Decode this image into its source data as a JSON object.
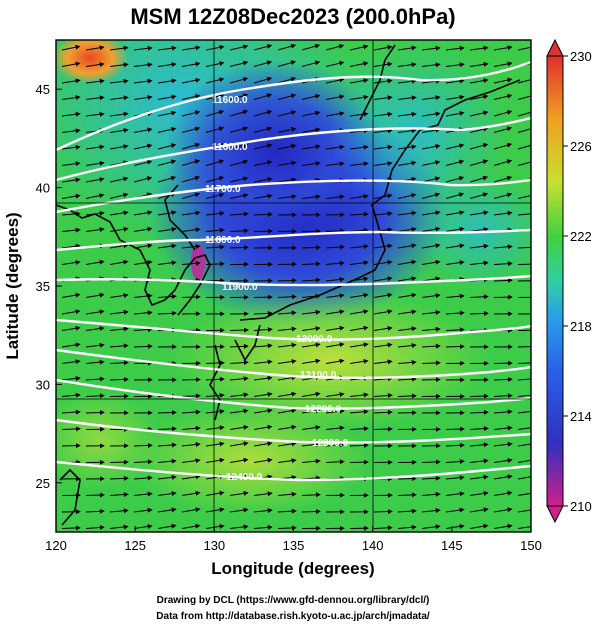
{
  "title": "MSM 12Z08Dec2023 (200.0hPa)",
  "map": {
    "x_label": "Longitude (degrees)",
    "y_label": "Latitude  (degrees)",
    "lon_range": [
      120,
      150
    ],
    "lat_range": [
      22.5,
      47.5
    ],
    "lon_ticks": [
      "120",
      "125",
      "130",
      "135",
      "140",
      "145",
      "150"
    ],
    "lat_ticks": [
      "25",
      "30",
      "35",
      "40",
      "45"
    ],
    "contour_labels": [
      "11600.0",
      "11600.0",
      "11700.0",
      "11800.0",
      "11900.0",
      "12000.0",
      "12100.0",
      "12200.0",
      "12300.0",
      "12400.0"
    ],
    "field_colors": {
      "low": "#2f2fcf",
      "mid": "#3fcf3f",
      "high": "#e8a020"
    }
  },
  "colorbar": {
    "ticks": [
      "230",
      "226",
      "222",
      "218",
      "214",
      "210"
    ],
    "range": [
      210,
      230
    ],
    "stops": [
      "#d0208a",
      "#3030c0",
      "#2aa0e8",
      "#30d080",
      "#40d040",
      "#c8e030",
      "#f0a020",
      "#e03030"
    ]
  },
  "credits": {
    "line1": "Drawing by DCL (https://www.gfd-dennou.org/library/dcl/)",
    "line2": "Data from http://database.rish.kyoto-u.ac.jp/arch/jmadata/"
  }
}
